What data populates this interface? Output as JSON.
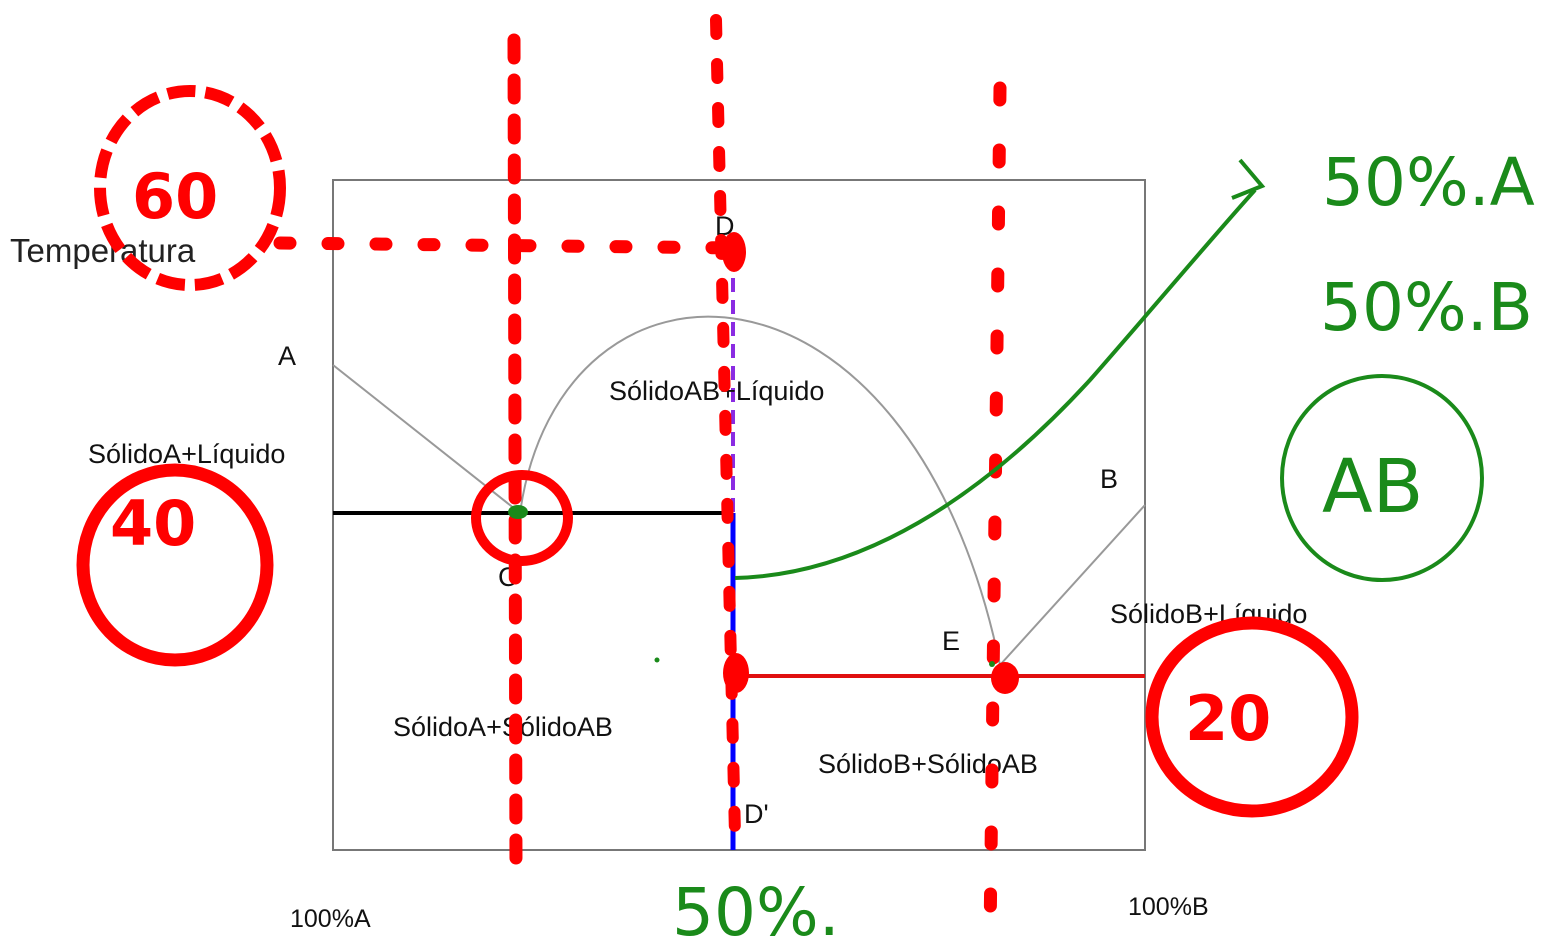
{
  "diagram": {
    "y_axis_label": "Temperatura",
    "x_axis_left": "100%A",
    "x_axis_right": "100%B",
    "points": {
      "A": "A",
      "B": "B",
      "C": "C",
      "D": "D",
      "D_prime": "D'",
      "E": "E"
    },
    "regions": {
      "solid_ab_liquid": "SólidoAB+Líquido",
      "solid_a_liquid": "SólidoA+Líquido",
      "solid_b_liquid": "SólidoB+Líquido",
      "solid_a_solid_ab": "SólidoA+SólidoAB",
      "solid_b_solid_ab": "SólidoB+SólidoAB"
    }
  },
  "annotations": {
    "red_circle_top": "60",
    "red_circle_left": "40",
    "red_circle_right": "20",
    "green_composition_a": "50%.A",
    "green_composition_b": "50%.B",
    "green_compound": "AB",
    "green_bottom": "50%."
  },
  "colors": {
    "frame": "#777777",
    "curve": "#999999",
    "eutectic_line_left": "#000000",
    "eutectic_line_right": "#e01010",
    "compound_line": "#0000ff",
    "compound_line_top": "#8a2be2",
    "annotation_red": "#ff0000",
    "annotation_green": "#1a8a1a"
  }
}
